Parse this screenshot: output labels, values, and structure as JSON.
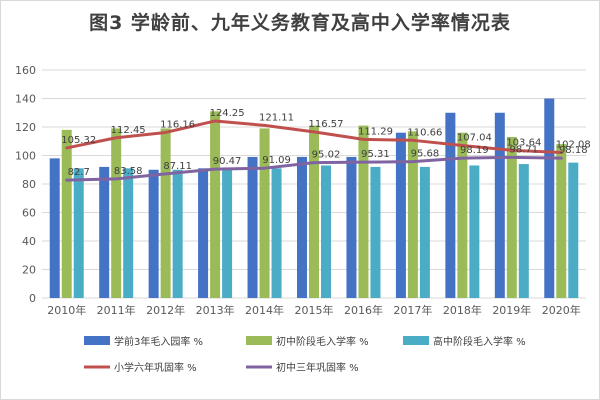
{
  "chart_data": {
    "type": "bar",
    "title": "图3 学龄前、九年义务教育及高中入学率情况表",
    "categories": [
      "2010年",
      "2011年",
      "2012年",
      "2013年",
      "2014年",
      "2015年",
      "2016年",
      "2017年",
      "2018年",
      "2019年",
      "2020年"
    ],
    "ylim": [
      0,
      160
    ],
    "yticks": [
      0,
      20,
      40,
      60,
      80,
      100,
      120,
      140,
      160
    ],
    "grid": true,
    "legend_position": "bottom",
    "bar_series": [
      {
        "name": "学前3年毛入园率 %",
        "color": "#4472c4",
        "values": [
          98,
          92,
          90,
          91,
          99,
          99,
          99,
          116,
          130,
          130,
          140
        ]
      },
      {
        "name": "初中阶段毛入学率 %",
        "color": "#9bbb59",
        "values": [
          118,
          119,
          119,
          131,
          119,
          121,
          121,
          117,
          116,
          113,
          108
        ]
      },
      {
        "name": "高中阶段毛入学率 %",
        "color": "#4bacc6",
        "values": [
          91,
          91,
          90,
          91,
          91,
          93,
          92,
          92,
          93,
          94,
          95
        ]
      }
    ],
    "line_series": [
      {
        "name": "小学六年巩固率 %",
        "color": "#c0504d",
        "values": [
          105.32,
          112.45,
          116.16,
          124.25,
          121.11,
          116.57,
          111.29,
          110.66,
          107.04,
          103.64,
          102.08
        ],
        "labels": [
          "105.32",
          "112.45",
          "116.16",
          "124.25",
          "121.11",
          "116.57",
          "111.29",
          "110.66",
          "107.04",
          "103.64",
          "102.08"
        ]
      },
      {
        "name": "初中三年巩固率 %",
        "color": "#8064a2",
        "values": [
          82.7,
          83.58,
          87.11,
          90.47,
          91.09,
          95.02,
          95.31,
          95.68,
          98.19,
          98.71,
          98.18
        ],
        "labels": [
          "82.7",
          "83.58",
          "87.11",
          "90.47",
          "91.09",
          "95.02",
          "95.31",
          "95.68",
          "98.19",
          "98.71",
          "98.18"
        ]
      }
    ]
  }
}
